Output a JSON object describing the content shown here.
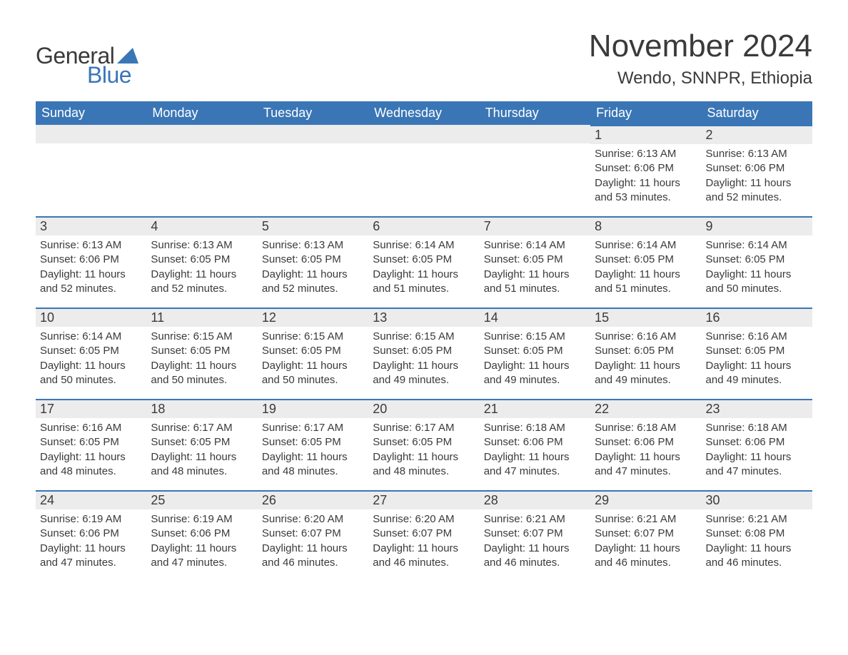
{
  "brand": {
    "word1": "General",
    "word2": "Blue",
    "sail_color": "#3a76b6",
    "text1_color": "#3a3a3a",
    "text2_color": "#3a76b6"
  },
  "title": {
    "month": "November 2024",
    "location": "Wendo, SNNPR, Ethiopia"
  },
  "colors": {
    "header_bg": "#3a76b6",
    "header_text": "#ffffff",
    "day_border": "#3a76b6",
    "daynum_bg": "#ececec",
    "page_bg": "#ffffff",
    "body_text": "#3a3a3a"
  },
  "weekdays": [
    "Sunday",
    "Monday",
    "Tuesday",
    "Wednesday",
    "Thursday",
    "Friday",
    "Saturday"
  ],
  "weeks": [
    [
      null,
      null,
      null,
      null,
      null,
      {
        "n": "1",
        "sunrise": "Sunrise: 6:13 AM",
        "sunset": "Sunset: 6:06 PM",
        "daylight": "Daylight: 11 hours and 53 minutes."
      },
      {
        "n": "2",
        "sunrise": "Sunrise: 6:13 AM",
        "sunset": "Sunset: 6:06 PM",
        "daylight": "Daylight: 11 hours and 52 minutes."
      }
    ],
    [
      {
        "n": "3",
        "sunrise": "Sunrise: 6:13 AM",
        "sunset": "Sunset: 6:06 PM",
        "daylight": "Daylight: 11 hours and 52 minutes."
      },
      {
        "n": "4",
        "sunrise": "Sunrise: 6:13 AM",
        "sunset": "Sunset: 6:05 PM",
        "daylight": "Daylight: 11 hours and 52 minutes."
      },
      {
        "n": "5",
        "sunrise": "Sunrise: 6:13 AM",
        "sunset": "Sunset: 6:05 PM",
        "daylight": "Daylight: 11 hours and 52 minutes."
      },
      {
        "n": "6",
        "sunrise": "Sunrise: 6:14 AM",
        "sunset": "Sunset: 6:05 PM",
        "daylight": "Daylight: 11 hours and 51 minutes."
      },
      {
        "n": "7",
        "sunrise": "Sunrise: 6:14 AM",
        "sunset": "Sunset: 6:05 PM",
        "daylight": "Daylight: 11 hours and 51 minutes."
      },
      {
        "n": "8",
        "sunrise": "Sunrise: 6:14 AM",
        "sunset": "Sunset: 6:05 PM",
        "daylight": "Daylight: 11 hours and 51 minutes."
      },
      {
        "n": "9",
        "sunrise": "Sunrise: 6:14 AM",
        "sunset": "Sunset: 6:05 PM",
        "daylight": "Daylight: 11 hours and 50 minutes."
      }
    ],
    [
      {
        "n": "10",
        "sunrise": "Sunrise: 6:14 AM",
        "sunset": "Sunset: 6:05 PM",
        "daylight": "Daylight: 11 hours and 50 minutes."
      },
      {
        "n": "11",
        "sunrise": "Sunrise: 6:15 AM",
        "sunset": "Sunset: 6:05 PM",
        "daylight": "Daylight: 11 hours and 50 minutes."
      },
      {
        "n": "12",
        "sunrise": "Sunrise: 6:15 AM",
        "sunset": "Sunset: 6:05 PM",
        "daylight": "Daylight: 11 hours and 50 minutes."
      },
      {
        "n": "13",
        "sunrise": "Sunrise: 6:15 AM",
        "sunset": "Sunset: 6:05 PM",
        "daylight": "Daylight: 11 hours and 49 minutes."
      },
      {
        "n": "14",
        "sunrise": "Sunrise: 6:15 AM",
        "sunset": "Sunset: 6:05 PM",
        "daylight": "Daylight: 11 hours and 49 minutes."
      },
      {
        "n": "15",
        "sunrise": "Sunrise: 6:16 AM",
        "sunset": "Sunset: 6:05 PM",
        "daylight": "Daylight: 11 hours and 49 minutes."
      },
      {
        "n": "16",
        "sunrise": "Sunrise: 6:16 AM",
        "sunset": "Sunset: 6:05 PM",
        "daylight": "Daylight: 11 hours and 49 minutes."
      }
    ],
    [
      {
        "n": "17",
        "sunrise": "Sunrise: 6:16 AM",
        "sunset": "Sunset: 6:05 PM",
        "daylight": "Daylight: 11 hours and 48 minutes."
      },
      {
        "n": "18",
        "sunrise": "Sunrise: 6:17 AM",
        "sunset": "Sunset: 6:05 PM",
        "daylight": "Daylight: 11 hours and 48 minutes."
      },
      {
        "n": "19",
        "sunrise": "Sunrise: 6:17 AM",
        "sunset": "Sunset: 6:05 PM",
        "daylight": "Daylight: 11 hours and 48 minutes."
      },
      {
        "n": "20",
        "sunrise": "Sunrise: 6:17 AM",
        "sunset": "Sunset: 6:05 PM",
        "daylight": "Daylight: 11 hours and 48 minutes."
      },
      {
        "n": "21",
        "sunrise": "Sunrise: 6:18 AM",
        "sunset": "Sunset: 6:06 PM",
        "daylight": "Daylight: 11 hours and 47 minutes."
      },
      {
        "n": "22",
        "sunrise": "Sunrise: 6:18 AM",
        "sunset": "Sunset: 6:06 PM",
        "daylight": "Daylight: 11 hours and 47 minutes."
      },
      {
        "n": "23",
        "sunrise": "Sunrise: 6:18 AM",
        "sunset": "Sunset: 6:06 PM",
        "daylight": "Daylight: 11 hours and 47 minutes."
      }
    ],
    [
      {
        "n": "24",
        "sunrise": "Sunrise: 6:19 AM",
        "sunset": "Sunset: 6:06 PM",
        "daylight": "Daylight: 11 hours and 47 minutes."
      },
      {
        "n": "25",
        "sunrise": "Sunrise: 6:19 AM",
        "sunset": "Sunset: 6:06 PM",
        "daylight": "Daylight: 11 hours and 47 minutes."
      },
      {
        "n": "26",
        "sunrise": "Sunrise: 6:20 AM",
        "sunset": "Sunset: 6:07 PM",
        "daylight": "Daylight: 11 hours and 46 minutes."
      },
      {
        "n": "27",
        "sunrise": "Sunrise: 6:20 AM",
        "sunset": "Sunset: 6:07 PM",
        "daylight": "Daylight: 11 hours and 46 minutes."
      },
      {
        "n": "28",
        "sunrise": "Sunrise: 6:21 AM",
        "sunset": "Sunset: 6:07 PM",
        "daylight": "Daylight: 11 hours and 46 minutes."
      },
      {
        "n": "29",
        "sunrise": "Sunrise: 6:21 AM",
        "sunset": "Sunset: 6:07 PM",
        "daylight": "Daylight: 11 hours and 46 minutes."
      },
      {
        "n": "30",
        "sunrise": "Sunrise: 6:21 AM",
        "sunset": "Sunset: 6:08 PM",
        "daylight": "Daylight: 11 hours and 46 minutes."
      }
    ]
  ]
}
